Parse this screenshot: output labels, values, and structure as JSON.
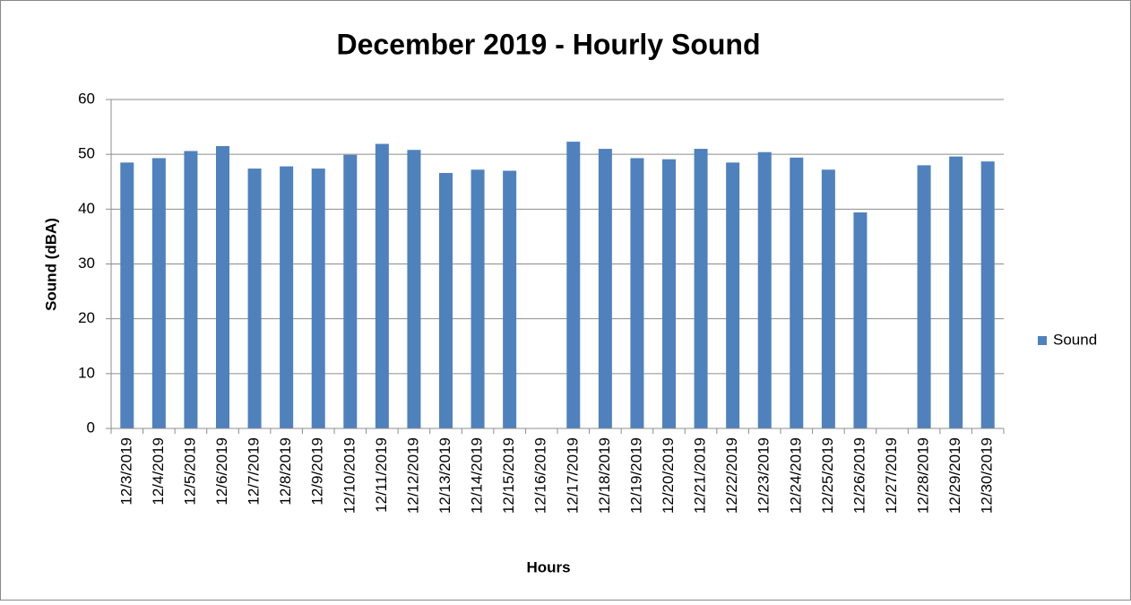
{
  "chart_data": {
    "type": "bar",
    "title": "December 2019 - Hourly Sound",
    "x_label": "Hours",
    "y_label": "Sound (dBA)",
    "categories": [
      "12/3/2019",
      "12/4/2019",
      "12/5/2019",
      "12/6/2019",
      "12/7/2019",
      "12/8/2019",
      "12/9/2019",
      "12/10/2019",
      "12/11/2019",
      "12/12/2019",
      "12/13/2019",
      "12/14/2019",
      "12/15/2019",
      "12/16/2019",
      "12/17/2019",
      "12/18/2019",
      "12/19/2019",
      "12/20/2019",
      "12/21/2019",
      "12/22/2019",
      "12/23/2019",
      "12/24/2019",
      "12/25/2019",
      "12/26/2019",
      "12/27/2019",
      "12/28/2019",
      "12/29/2019",
      "12/30/2019"
    ],
    "series": [
      {
        "name": "Sound",
        "color": "#4f81bd",
        "values": [
          48.5,
          49.3,
          50.6,
          51.5,
          47.4,
          47.8,
          47.4,
          49.9,
          51.9,
          50.8,
          46.6,
          47.2,
          47.0,
          null,
          52.3,
          51.0,
          49.3,
          49.1,
          51.0,
          48.5,
          50.4,
          49.4,
          47.2,
          39.4,
          null,
          48.0,
          49.6,
          48.7
        ]
      }
    ],
    "ylim": [
      0,
      60
    ],
    "yticks": [
      0,
      10,
      20,
      30,
      40,
      50,
      60
    ],
    "grid": true,
    "legend": "right"
  }
}
